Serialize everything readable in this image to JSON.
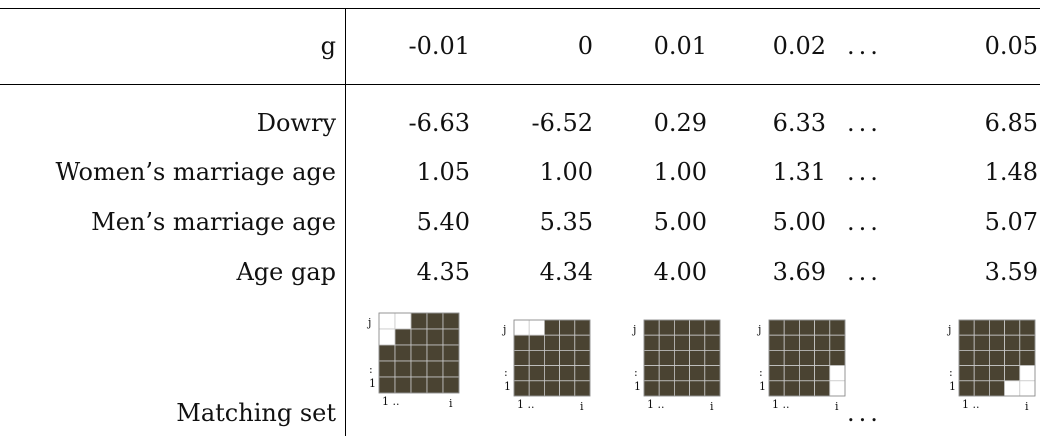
{
  "table": {
    "header": {
      "label": "g",
      "values": [
        "-0.01",
        "0",
        "0.01",
        "0.02",
        "0.05"
      ],
      "ellipsis": "..."
    },
    "rows": [
      {
        "label": "Dowry",
        "values": [
          "-6.63",
          "-6.52",
          "0.29",
          "6.33",
          "6.85"
        ],
        "ellipsis": "..."
      },
      {
        "label": "Women’s marriage age",
        "values": [
          "1.05",
          "1.00",
          "1.00",
          "1.31",
          "1.48"
        ],
        "ellipsis": "..."
      },
      {
        "label": "Men’s marriage age",
        "values": [
          "5.40",
          "5.35",
          "5.00",
          "5.00",
          "5.07"
        ],
        "ellipsis": "..."
      },
      {
        "label": "Age gap",
        "values": [
          "4.35",
          "4.34",
          "4.00",
          "3.69",
          "3.59"
        ],
        "ellipsis": "..."
      }
    ],
    "matching_row": {
      "label": "Matching set",
      "ellipsis": "...",
      "axis_labels": {
        "j": "j",
        "vdots": ":",
        "one": "1",
        "one_dots": "1 ..",
        "i": "i"
      },
      "fill_color": "#4a4332",
      "empty_color": "#ffffff",
      "grid_color": "#c8c8c8",
      "matrices": [
        {
          "name": "g=-0.01",
          "grid": [
            [
              0,
              0,
              1,
              1,
              1
            ],
            [
              0,
              1,
              1,
              1,
              1
            ],
            [
              1,
              1,
              1,
              1,
              1
            ],
            [
              1,
              1,
              1,
              1,
              1
            ],
            [
              1,
              1,
              1,
              1,
              1
            ]
          ]
        },
        {
          "name": "g=0",
          "grid": [
            [
              0,
              0,
              1,
              1,
              1
            ],
            [
              1,
              1,
              1,
              1,
              1
            ],
            [
              1,
              1,
              1,
              1,
              1
            ],
            [
              1,
              1,
              1,
              1,
              1
            ],
            [
              1,
              1,
              1,
              1,
              1
            ]
          ]
        },
        {
          "name": "g=0.01",
          "grid": [
            [
              1,
              1,
              1,
              1,
              1
            ],
            [
              1,
              1,
              1,
              1,
              1
            ],
            [
              1,
              1,
              1,
              1,
              1
            ],
            [
              1,
              1,
              1,
              1,
              1
            ],
            [
              1,
              1,
              1,
              1,
              1
            ]
          ]
        },
        {
          "name": "g=0.02",
          "grid": [
            [
              1,
              1,
              1,
              1,
              1
            ],
            [
              1,
              1,
              1,
              1,
              1
            ],
            [
              1,
              1,
              1,
              1,
              1
            ],
            [
              1,
              1,
              1,
              1,
              0
            ],
            [
              1,
              1,
              1,
              1,
              0
            ]
          ]
        },
        {
          "name": "g=0.05",
          "grid": [
            [
              1,
              1,
              1,
              1,
              1
            ],
            [
              1,
              1,
              1,
              1,
              1
            ],
            [
              1,
              1,
              1,
              1,
              1
            ],
            [
              1,
              1,
              1,
              1,
              0
            ],
            [
              1,
              1,
              1,
              0,
              0
            ]
          ]
        }
      ]
    }
  }
}
